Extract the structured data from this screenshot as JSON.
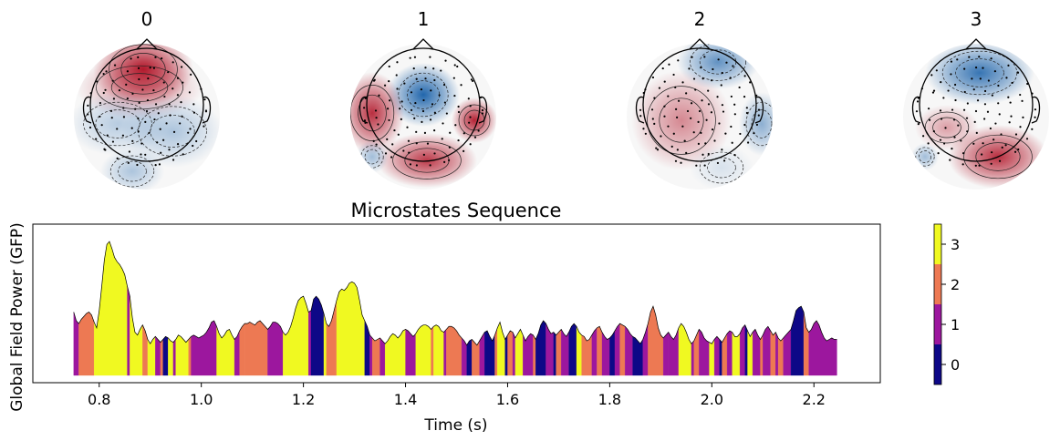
{
  "topomaps": [
    {
      "label": "0",
      "pattern": "frontal-positive"
    },
    {
      "label": "1",
      "pattern": "central-negative-lateral-positive"
    },
    {
      "label": "2",
      "pattern": "left-central-positive-right-negative"
    },
    {
      "label": "3",
      "pattern": "frontal-negative-posterior-positive"
    }
  ],
  "colors": {
    "state_0": "#0d0887",
    "state_1": "#9c179e",
    "state_2": "#ed7953",
    "state_3": "#f0f921",
    "topo_positive": "#b2182b",
    "topo_negative": "#2166ac"
  },
  "chart_data": {
    "type": "area",
    "title": "Microstates Sequence",
    "xlabel": "Time (s)",
    "ylabel": "Global Field Power (GFP)",
    "xlim": [
      0.67,
      2.33
    ],
    "ylim": [
      0,
      1.0
    ],
    "xticks": [
      "0.8",
      "1.0",
      "1.2",
      "1.4",
      "1.6",
      "1.8",
      "2.0",
      "2.2"
    ],
    "colorbar": {
      "ticks": [
        "0",
        "1",
        "2",
        "3"
      ],
      "range": [
        -0.5,
        3.5
      ]
    },
    "gfp": [
      [
        0.75,
        0.44
      ],
      [
        0.755,
        0.38
      ],
      [
        0.76,
        0.36
      ],
      [
        0.765,
        0.39
      ],
      [
        0.77,
        0.41
      ],
      [
        0.775,
        0.43
      ],
      [
        0.78,
        0.44
      ],
      [
        0.785,
        0.42
      ],
      [
        0.79,
        0.37
      ],
      [
        0.795,
        0.33
      ],
      [
        0.8,
        0.45
      ],
      [
        0.805,
        0.62
      ],
      [
        0.81,
        0.8
      ],
      [
        0.815,
        0.91
      ],
      [
        0.82,
        0.93
      ],
      [
        0.825,
        0.88
      ],
      [
        0.83,
        0.82
      ],
      [
        0.835,
        0.79
      ],
      [
        0.84,
        0.77
      ],
      [
        0.845,
        0.74
      ],
      [
        0.85,
        0.7
      ],
      [
        0.855,
        0.62
      ],
      [
        0.86,
        0.55
      ],
      [
        0.865,
        0.4
      ],
      [
        0.87,
        0.3
      ],
      [
        0.875,
        0.28
      ],
      [
        0.88,
        0.32
      ],
      [
        0.885,
        0.35
      ],
      [
        0.89,
        0.31
      ],
      [
        0.895,
        0.25
      ],
      [
        0.9,
        0.22
      ],
      [
        0.905,
        0.25
      ],
      [
        0.91,
        0.27
      ],
      [
        0.915,
        0.25
      ],
      [
        0.92,
        0.23
      ],
      [
        0.925,
        0.25
      ],
      [
        0.93,
        0.27
      ],
      [
        0.935,
        0.26
      ],
      [
        0.94,
        0.24
      ],
      [
        0.945,
        0.23
      ],
      [
        0.95,
        0.25
      ],
      [
        0.955,
        0.28
      ],
      [
        0.96,
        0.27
      ],
      [
        0.965,
        0.25
      ],
      [
        0.97,
        0.23
      ],
      [
        0.975,
        0.25
      ],
      [
        0.98,
        0.27
      ],
      [
        0.985,
        0.28
      ],
      [
        0.99,
        0.27
      ],
      [
        0.995,
        0.26
      ],
      [
        1.0,
        0.27
      ],
      [
        1.005,
        0.28
      ],
      [
        1.01,
        0.3
      ],
      [
        1.015,
        0.33
      ],
      [
        1.02,
        0.37
      ],
      [
        1.025,
        0.38
      ],
      [
        1.03,
        0.34
      ],
      [
        1.035,
        0.29
      ],
      [
        1.04,
        0.26
      ],
      [
        1.045,
        0.28
      ],
      [
        1.05,
        0.31
      ],
      [
        1.055,
        0.32
      ],
      [
        1.06,
        0.28
      ],
      [
        1.065,
        0.25
      ],
      [
        1.07,
        0.27
      ],
      [
        1.075,
        0.31
      ],
      [
        1.08,
        0.34
      ],
      [
        1.085,
        0.36
      ],
      [
        1.09,
        0.36
      ],
      [
        1.095,
        0.37
      ],
      [
        1.1,
        0.36
      ],
      [
        1.105,
        0.35
      ],
      [
        1.11,
        0.37
      ],
      [
        1.115,
        0.38
      ],
      [
        1.12,
        0.36
      ],
      [
        1.125,
        0.34
      ],
      [
        1.13,
        0.32
      ],
      [
        1.135,
        0.34
      ],
      [
        1.14,
        0.37
      ],
      [
        1.145,
        0.37
      ],
      [
        1.15,
        0.36
      ],
      [
        1.155,
        0.34
      ],
      [
        1.16,
        0.3
      ],
      [
        1.165,
        0.28
      ],
      [
        1.17,
        0.3
      ],
      [
        1.175,
        0.34
      ],
      [
        1.18,
        0.4
      ],
      [
        1.185,
        0.47
      ],
      [
        1.19,
        0.52
      ],
      [
        1.195,
        0.54
      ],
      [
        1.2,
        0.55
      ],
      [
        1.205,
        0.5
      ],
      [
        1.21,
        0.44
      ],
      [
        1.215,
        0.45
      ],
      [
        1.22,
        0.53
      ],
      [
        1.225,
        0.55
      ],
      [
        1.23,
        0.53
      ],
      [
        1.235,
        0.49
      ],
      [
        1.24,
        0.43
      ],
      [
        1.245,
        0.36
      ],
      [
        1.25,
        0.34
      ],
      [
        1.255,
        0.38
      ],
      [
        1.26,
        0.45
      ],
      [
        1.265,
        0.52
      ],
      [
        1.27,
        0.58
      ],
      [
        1.275,
        0.6
      ],
      [
        1.28,
        0.59
      ],
      [
        1.285,
        0.61
      ],
      [
        1.29,
        0.64
      ],
      [
        1.295,
        0.65
      ],
      [
        1.3,
        0.64
      ],
      [
        1.305,
        0.61
      ],
      [
        1.31,
        0.52
      ],
      [
        1.315,
        0.42
      ],
      [
        1.32,
        0.38
      ],
      [
        1.325,
        0.34
      ],
      [
        1.33,
        0.28
      ],
      [
        1.335,
        0.26
      ],
      [
        1.34,
        0.24
      ],
      [
        1.345,
        0.25
      ],
      [
        1.35,
        0.26
      ],
      [
        1.355,
        0.24
      ],
      [
        1.36,
        0.22
      ],
      [
        1.365,
        0.24
      ],
      [
        1.37,
        0.27
      ],
      [
        1.375,
        0.29
      ],
      [
        1.38,
        0.28
      ],
      [
        1.385,
        0.26
      ],
      [
        1.39,
        0.28
      ],
      [
        1.395,
        0.31
      ],
      [
        1.4,
        0.32
      ],
      [
        1.405,
        0.31
      ],
      [
        1.41,
        0.29
      ],
      [
        1.415,
        0.27
      ],
      [
        1.42,
        0.29
      ],
      [
        1.425,
        0.32
      ],
      [
        1.43,
        0.34
      ],
      [
        1.435,
        0.35
      ],
      [
        1.44,
        0.35
      ],
      [
        1.445,
        0.34
      ],
      [
        1.45,
        0.32
      ],
      [
        1.455,
        0.34
      ],
      [
        1.46,
        0.35
      ],
      [
        1.465,
        0.34
      ],
      [
        1.47,
        0.31
      ],
      [
        1.475,
        0.3
      ],
      [
        1.48,
        0.32
      ],
      [
        1.485,
        0.34
      ],
      [
        1.49,
        0.34
      ],
      [
        1.495,
        0.33
      ],
      [
        1.5,
        0.31
      ],
      [
        1.505,
        0.28
      ],
      [
        1.51,
        0.26
      ],
      [
        1.515,
        0.24
      ],
      [
        1.52,
        0.21
      ],
      [
        1.525,
        0.24
      ],
      [
        1.53,
        0.25
      ],
      [
        1.535,
        0.23
      ],
      [
        1.54,
        0.21
      ],
      [
        1.545,
        0.24
      ],
      [
        1.55,
        0.27
      ],
      [
        1.555,
        0.3
      ],
      [
        1.56,
        0.31
      ],
      [
        1.565,
        0.27
      ],
      [
        1.57,
        0.24
      ],
      [
        1.575,
        0.28
      ],
      [
        1.58,
        0.33
      ],
      [
        1.585,
        0.37
      ],
      [
        1.59,
        0.3
      ],
      [
        1.595,
        0.25
      ],
      [
        1.6,
        0.28
      ],
      [
        1.605,
        0.31
      ],
      [
        1.61,
        0.3
      ],
      [
        1.615,
        0.26
      ],
      [
        1.62,
        0.29
      ],
      [
        1.625,
        0.32
      ],
      [
        1.63,
        0.28
      ],
      [
        1.635,
        0.24
      ],
      [
        1.64,
        0.27
      ],
      [
        1.645,
        0.29
      ],
      [
        1.65,
        0.28
      ],
      [
        1.655,
        0.25
      ],
      [
        1.66,
        0.29
      ],
      [
        1.665,
        0.35
      ],
      [
        1.67,
        0.38
      ],
      [
        1.675,
        0.36
      ],
      [
        1.68,
        0.32
      ],
      [
        1.685,
        0.29
      ],
      [
        1.69,
        0.3
      ],
      [
        1.695,
        0.28
      ],
      [
        1.7,
        0.3
      ],
      [
        1.705,
        0.32
      ],
      [
        1.71,
        0.29
      ],
      [
        1.715,
        0.27
      ],
      [
        1.72,
        0.3
      ],
      [
        1.725,
        0.34
      ],
      [
        1.73,
        0.36
      ],
      [
        1.735,
        0.34
      ],
      [
        1.74,
        0.3
      ],
      [
        1.745,
        0.28
      ],
      [
        1.75,
        0.27
      ],
      [
        1.755,
        0.24
      ],
      [
        1.76,
        0.25
      ],
      [
        1.765,
        0.28
      ],
      [
        1.77,
        0.31
      ],
      [
        1.775,
        0.33
      ],
      [
        1.78,
        0.34
      ],
      [
        1.785,
        0.3
      ],
      [
        1.79,
        0.27
      ],
      [
        1.795,
        0.25
      ],
      [
        1.8,
        0.26
      ],
      [
        1.805,
        0.28
      ],
      [
        1.81,
        0.31
      ],
      [
        1.815,
        0.34
      ],
      [
        1.82,
        0.36
      ],
      [
        1.825,
        0.35
      ],
      [
        1.83,
        0.34
      ],
      [
        1.835,
        0.32
      ],
      [
        1.84,
        0.29
      ],
      [
        1.845,
        0.27
      ],
      [
        1.85,
        0.26
      ],
      [
        1.855,
        0.24
      ],
      [
        1.86,
        0.22
      ],
      [
        1.865,
        0.25
      ],
      [
        1.87,
        0.3
      ],
      [
        1.875,
        0.36
      ],
      [
        1.88,
        0.44
      ],
      [
        1.885,
        0.48
      ],
      [
        1.89,
        0.42
      ],
      [
        1.895,
        0.33
      ],
      [
        1.9,
        0.28
      ],
      [
        1.905,
        0.26
      ],
      [
        1.91,
        0.28
      ],
      [
        1.915,
        0.3
      ],
      [
        1.92,
        0.27
      ],
      [
        1.925,
        0.25
      ],
      [
        1.93,
        0.28
      ],
      [
        1.935,
        0.33
      ],
      [
        1.94,
        0.36
      ],
      [
        1.945,
        0.34
      ],
      [
        1.95,
        0.3
      ],
      [
        1.955,
        0.25
      ],
      [
        1.96,
        0.22
      ],
      [
        1.965,
        0.24
      ],
      [
        1.97,
        0.28
      ],
      [
        1.975,
        0.32
      ],
      [
        1.98,
        0.3
      ],
      [
        1.985,
        0.26
      ],
      [
        1.99,
        0.24
      ],
      [
        1.995,
        0.23
      ],
      [
        2.0,
        0.22
      ],
      [
        2.005,
        0.25
      ],
      [
        2.01,
        0.27
      ],
      [
        2.015,
        0.25
      ],
      [
        2.02,
        0.23
      ],
      [
        2.025,
        0.26
      ],
      [
        2.03,
        0.29
      ],
      [
        2.035,
        0.31
      ],
      [
        2.04,
        0.3
      ],
      [
        2.045,
        0.27
      ],
      [
        2.05,
        0.27
      ],
      [
        2.055,
        0.29
      ],
      [
        2.06,
        0.33
      ],
      [
        2.065,
        0.35
      ],
      [
        2.07,
        0.31
      ],
      [
        2.075,
        0.27
      ],
      [
        2.08,
        0.3
      ],
      [
        2.085,
        0.32
      ],
      [
        2.09,
        0.28
      ],
      [
        2.095,
        0.25
      ],
      [
        2.1,
        0.28
      ],
      [
        2.105,
        0.32
      ],
      [
        2.11,
        0.34
      ],
      [
        2.115,
        0.31
      ],
      [
        2.12,
        0.28
      ],
      [
        2.125,
        0.3
      ],
      [
        2.13,
        0.26
      ],
      [
        2.135,
        0.24
      ],
      [
        2.14,
        0.26
      ],
      [
        2.145,
        0.28
      ],
      [
        2.15,
        0.3
      ],
      [
        2.155,
        0.32
      ],
      [
        2.16,
        0.38
      ],
      [
        2.165,
        0.45
      ],
      [
        2.17,
        0.47
      ],
      [
        2.175,
        0.48
      ],
      [
        2.18,
        0.44
      ],
      [
        2.185,
        0.33
      ],
      [
        2.19,
        0.3
      ],
      [
        2.195,
        0.32
      ],
      [
        2.2,
        0.36
      ],
      [
        2.205,
        0.38
      ],
      [
        2.21,
        0.35
      ],
      [
        2.215,
        0.3
      ],
      [
        2.22,
        0.26
      ],
      [
        2.225,
        0.24
      ],
      [
        2.23,
        0.25
      ],
      [
        2.235,
        0.26
      ],
      [
        2.24,
        0.25
      ],
      [
        2.245,
        0.25
      ]
    ],
    "segments": [
      [
        0.75,
        0.76,
        1
      ],
      [
        0.76,
        0.79,
        2
      ],
      [
        0.79,
        0.855,
        3
      ],
      [
        0.855,
        0.86,
        1
      ],
      [
        0.86,
        0.885,
        3
      ],
      [
        0.885,
        0.895,
        2
      ],
      [
        0.895,
        0.91,
        3
      ],
      [
        0.91,
        0.92,
        1
      ],
      [
        0.92,
        0.925,
        2
      ],
      [
        0.925,
        0.935,
        0
      ],
      [
        0.935,
        0.945,
        3
      ],
      [
        0.945,
        0.95,
        1
      ],
      [
        0.95,
        0.975,
        3
      ],
      [
        0.975,
        0.98,
        2
      ],
      [
        0.98,
        1.03,
        1
      ],
      [
        1.03,
        1.065,
        3
      ],
      [
        1.065,
        1.075,
        1
      ],
      [
        1.075,
        1.085,
        2
      ],
      [
        1.085,
        1.13,
        2
      ],
      [
        1.13,
        1.16,
        1
      ],
      [
        1.16,
        1.21,
        3
      ],
      [
        1.21,
        1.215,
        1
      ],
      [
        1.215,
        1.24,
        0
      ],
      [
        1.24,
        1.245,
        3
      ],
      [
        1.245,
        1.265,
        2
      ],
      [
        1.265,
        1.32,
        3
      ],
      [
        1.32,
        1.33,
        0
      ],
      [
        1.33,
        1.335,
        1
      ],
      [
        1.335,
        1.35,
        2
      ],
      [
        1.35,
        1.36,
        1
      ],
      [
        1.36,
        1.4,
        3
      ],
      [
        1.4,
        1.42,
        1
      ],
      [
        1.42,
        1.45,
        3
      ],
      [
        1.45,
        1.455,
        2
      ],
      [
        1.455,
        1.475,
        3
      ],
      [
        1.475,
        1.48,
        1
      ],
      [
        1.48,
        1.51,
        2
      ],
      [
        1.51,
        1.52,
        1
      ],
      [
        1.52,
        1.53,
        0
      ],
      [
        1.53,
        1.545,
        2
      ],
      [
        1.545,
        1.555,
        1
      ],
      [
        1.555,
        1.575,
        0
      ],
      [
        1.575,
        1.58,
        2
      ],
      [
        1.58,
        1.595,
        3
      ],
      [
        1.595,
        1.6,
        0
      ],
      [
        1.6,
        1.61,
        2
      ],
      [
        1.61,
        1.615,
        1
      ],
      [
        1.615,
        1.63,
        3
      ],
      [
        1.63,
        1.65,
        1
      ],
      [
        1.65,
        1.655,
        2
      ],
      [
        1.655,
        1.675,
        0
      ],
      [
        1.675,
        1.69,
        1
      ],
      [
        1.69,
        1.695,
        0
      ],
      [
        1.695,
        1.705,
        2
      ],
      [
        1.705,
        1.72,
        1
      ],
      [
        1.72,
        1.735,
        0
      ],
      [
        1.735,
        1.745,
        3
      ],
      [
        1.745,
        1.765,
        2
      ],
      [
        1.765,
        1.775,
        1
      ],
      [
        1.775,
        1.785,
        2
      ],
      [
        1.785,
        1.8,
        1
      ],
      [
        1.8,
        1.81,
        0
      ],
      [
        1.81,
        1.82,
        1
      ],
      [
        1.82,
        1.83,
        2
      ],
      [
        1.83,
        1.845,
        1
      ],
      [
        1.845,
        1.865,
        0
      ],
      [
        1.865,
        1.875,
        1
      ],
      [
        1.875,
        1.905,
        2
      ],
      [
        1.905,
        1.915,
        1
      ],
      [
        1.915,
        1.935,
        1
      ],
      [
        1.935,
        1.96,
        3
      ],
      [
        1.96,
        1.965,
        1
      ],
      [
        1.965,
        1.975,
        2
      ],
      [
        1.975,
        1.995,
        1
      ],
      [
        1.995,
        2.005,
        3
      ],
      [
        2.005,
        2.015,
        1
      ],
      [
        2.015,
        2.02,
        0
      ],
      [
        2.02,
        2.03,
        2
      ],
      [
        2.03,
        2.04,
        1
      ],
      [
        2.04,
        2.055,
        3
      ],
      [
        2.055,
        2.065,
        1
      ],
      [
        2.065,
        2.07,
        0
      ],
      [
        2.07,
        2.08,
        3
      ],
      [
        2.08,
        2.095,
        1
      ],
      [
        2.095,
        2.1,
        2
      ],
      [
        2.1,
        2.115,
        1
      ],
      [
        2.115,
        2.125,
        2
      ],
      [
        2.125,
        2.13,
        1
      ],
      [
        2.13,
        2.14,
        2
      ],
      [
        2.14,
        2.155,
        1
      ],
      [
        2.155,
        2.18,
        0
      ],
      [
        2.18,
        2.19,
        2
      ],
      [
        2.19,
        2.245,
        1
      ]
    ]
  }
}
